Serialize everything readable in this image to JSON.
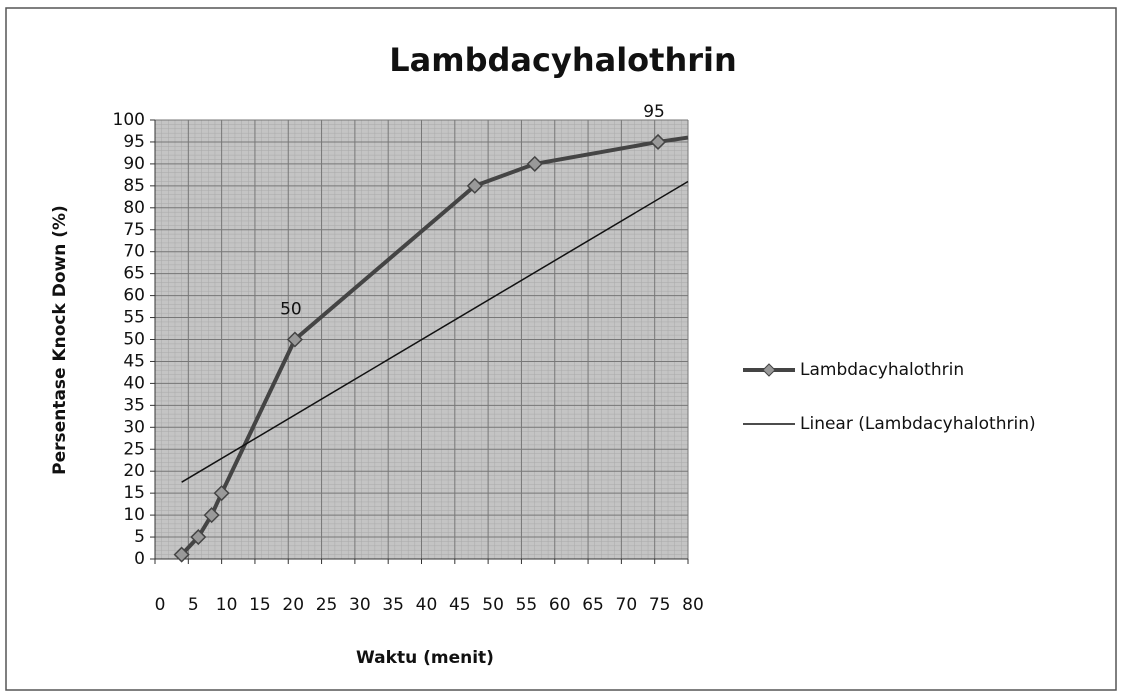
{
  "chart_data": {
    "type": "line",
    "title": "Lambdacyhalothrin",
    "x_label": "Waktu (menit)",
    "y_label": "Persentase Knock Down (%)",
    "series": [
      {
        "name": "Lambdacyhalothrin",
        "color": "#444444",
        "marker": "diamond",
        "x": [
          4,
          6.5,
          8.5,
          10,
          21,
          48,
          57,
          75.5,
          80
        ],
        "values": [
          1,
          5,
          10,
          15,
          50,
          85,
          90,
          95,
          96
        ],
        "value_labels": [
          null,
          null,
          null,
          null,
          "50",
          null,
          null,
          "95",
          null
        ]
      },
      {
        "name": "Linear (Lambdacyhalothrin)",
        "color": "#111111",
        "marker": "none",
        "x": [
          4,
          80
        ],
        "values": [
          17.5,
          86
        ]
      }
    ],
    "xlim": [
      0,
      80
    ],
    "xticks": [
      0,
      5,
      10,
      15,
      20,
      25,
      30,
      35,
      40,
      45,
      50,
      55,
      60,
      65,
      70,
      75,
      80
    ],
    "ylim": [
      0,
      100
    ],
    "yticks": [
      0,
      5,
      10,
      15,
      20,
      25,
      30,
      35,
      40,
      45,
      50,
      55,
      60,
      65,
      70,
      75,
      80,
      85,
      90,
      95,
      100
    ],
    "grid": true,
    "legend": "right"
  }
}
